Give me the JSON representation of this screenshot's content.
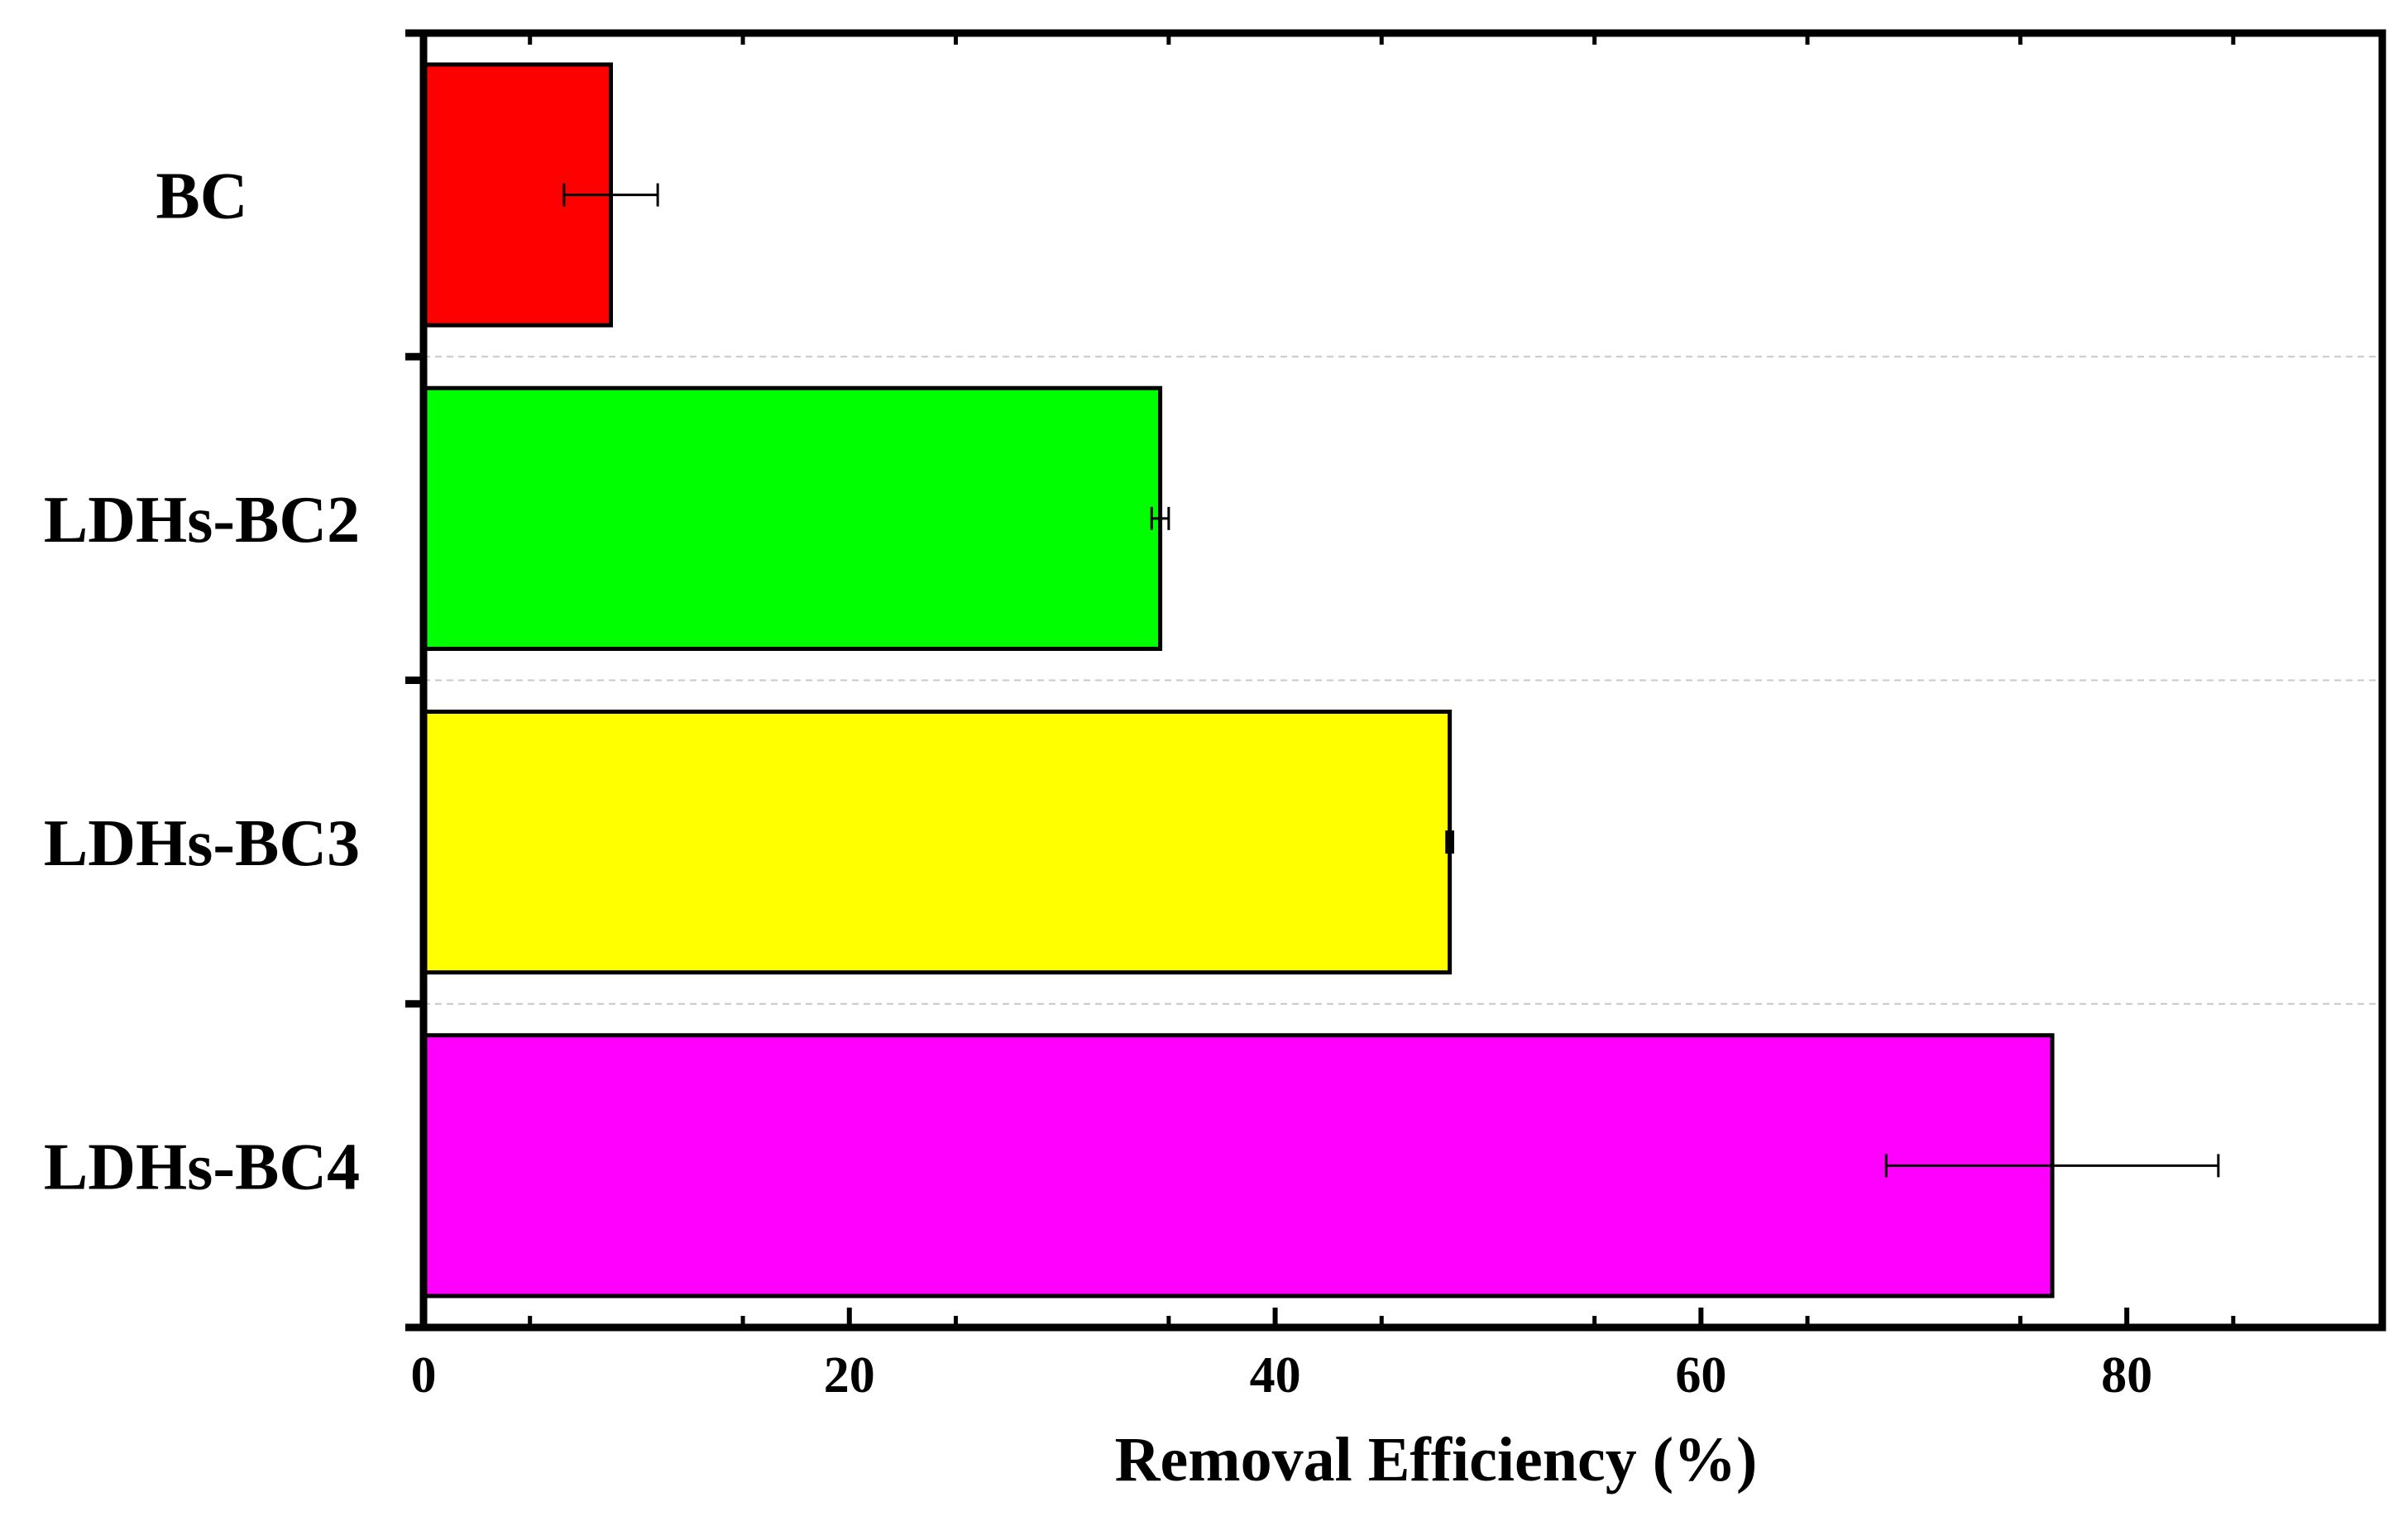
{
  "chart_data": {
    "type": "bar",
    "orientation": "horizontal",
    "categories": [
      "BC",
      "LDHs-BC2",
      "LDHs-BC3",
      "LDHs-BC4"
    ],
    "values": [
      8.8,
      34.6,
      48.2,
      76.5
    ],
    "errors": [
      2.2,
      0.4,
      0.15,
      7.8
    ],
    "colors": [
      "#ff0000",
      "#00ff00",
      "#ffff00",
      "#ff00ff"
    ],
    "title": "",
    "xlabel": "Removal Efficiency (%)",
    "ylabel": "",
    "xlim": [
      0,
      92
    ],
    "xticks": [
      0,
      20,
      40,
      60,
      80
    ],
    "grid": "dashed horizontal separators between categories",
    "legend": "none"
  }
}
